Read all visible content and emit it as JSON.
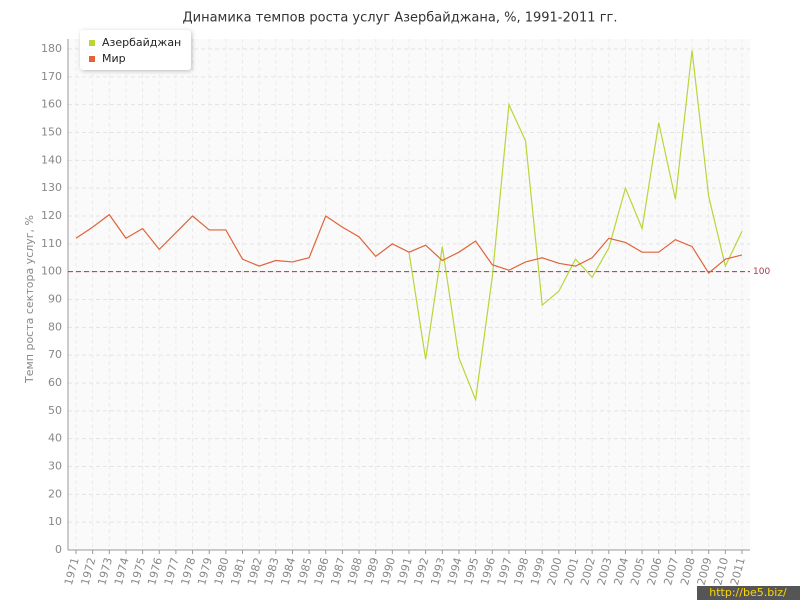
{
  "chart_data": {
    "type": "line",
    "title": "Динамика темпов роста услуг Азербайджана, %, 1991-2011 гг.",
    "y_label": "Темп роста сектора услуг, %",
    "categories": [
      "1971",
      "1972",
      "1973",
      "1974",
      "1975",
      "1976",
      "1977",
      "1978",
      "1979",
      "1980",
      "1981",
      "1982",
      "1983",
      "1984",
      "1985",
      "1986",
      "1987",
      "1988",
      "1989",
      "1990",
      "1991",
      "1992",
      "1993",
      "1994",
      "1995",
      "1996",
      "1997",
      "1998",
      "1999",
      "2000",
      "2001",
      "2002",
      "2003",
      "2004",
      "2005",
      "2006",
      "2007",
      "2008",
      "2009",
      "2010",
      "2011"
    ],
    "series": [
      {
        "name": "Азербайджан",
        "color": "#b8d639",
        "values": [
          null,
          null,
          null,
          null,
          null,
          null,
          null,
          null,
          null,
          null,
          null,
          null,
          null,
          null,
          null,
          null,
          null,
          null,
          null,
          null,
          107,
          68.5,
          109,
          69,
          54,
          98,
          160,
          147,
          88,
          93,
          104.5,
          98,
          108.5,
          130,
          115.5,
          153.5,
          126,
          179.5,
          127,
          102,
          114.5
        ]
      },
      {
        "name": "Мир",
        "color": "#e0633a",
        "values": [
          112,
          116,
          120.5,
          112,
          115.5,
          108,
          114,
          120,
          115,
          115,
          104.5,
          102,
          104,
          103.5,
          105,
          120,
          116,
          112.5,
          105.5,
          110,
          107,
          109.5,
          104,
          107,
          111,
          102.5,
          100.5,
          103.5,
          105,
          103,
          102,
          105,
          112,
          110.5,
          107,
          107,
          111.5,
          109,
          99.5,
          104.5,
          106
        ]
      }
    ],
    "reference_line": 100,
    "ylim": [
      0,
      180
    ],
    "yticks": [
      0,
      10,
      20,
      30,
      40,
      50,
      60,
      70,
      80,
      90,
      100,
      110,
      120,
      130,
      140,
      150,
      160,
      170,
      180
    ],
    "grid": true,
    "legend": "top-left",
    "watermark": "http://be5.biz/"
  }
}
